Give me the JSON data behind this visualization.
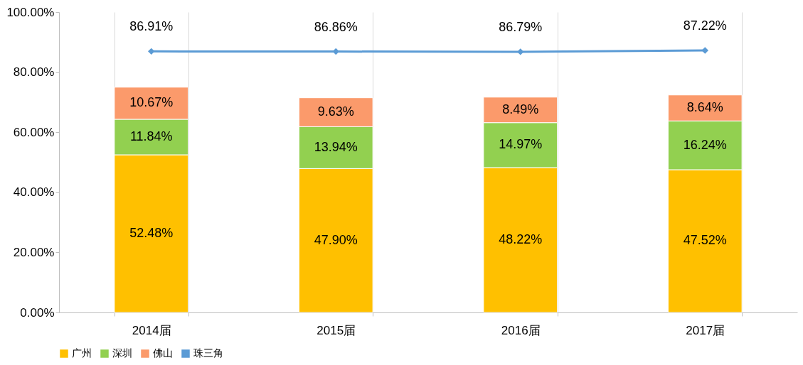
{
  "chart_data": {
    "type": "bar",
    "stacked": true,
    "categories": [
      "2014届",
      "2015届",
      "2016届",
      "2017届"
    ],
    "series": [
      {
        "name": "广州",
        "color": "#ffc000",
        "values": [
          52.48,
          47.9,
          48.22,
          47.52
        ],
        "value_labels": [
          "52.48%",
          "47.90%",
          "48.22%",
          "47.52%"
        ]
      },
      {
        "name": "深圳",
        "color": "#92d050",
        "values": [
          11.84,
          13.94,
          14.97,
          16.24
        ],
        "value_labels": [
          "11.84%",
          "13.94%",
          "14.97%",
          "16.24%"
        ]
      },
      {
        "name": "佛山",
        "color": "#fb9a6b",
        "values": [
          10.67,
          9.63,
          8.49,
          8.64
        ],
        "value_labels": [
          "10.67%",
          "9.63%",
          "8.49%",
          "8.64%"
        ]
      },
      {
        "name": "珠三角",
        "type": "line",
        "color": "#5b9bd5",
        "values": [
          86.91,
          86.86,
          86.79,
          87.22
        ],
        "marker": "diamond",
        "value_labels": [
          "86.91%",
          "86.86%",
          "86.79%",
          "87.22%"
        ]
      }
    ],
    "ylim": [
      0,
      100
    ],
    "yticks": [
      {
        "value": 0,
        "label": "0.00%"
      },
      {
        "value": 20,
        "label": "20.00%"
      },
      {
        "value": 40,
        "label": "40.00%"
      },
      {
        "value": 60,
        "label": "60.00%"
      },
      {
        "value": 80,
        "label": "80.00%"
      },
      {
        "value": 100,
        "label": "100.00%"
      }
    ],
    "grid": "x",
    "legend": "bottom"
  }
}
